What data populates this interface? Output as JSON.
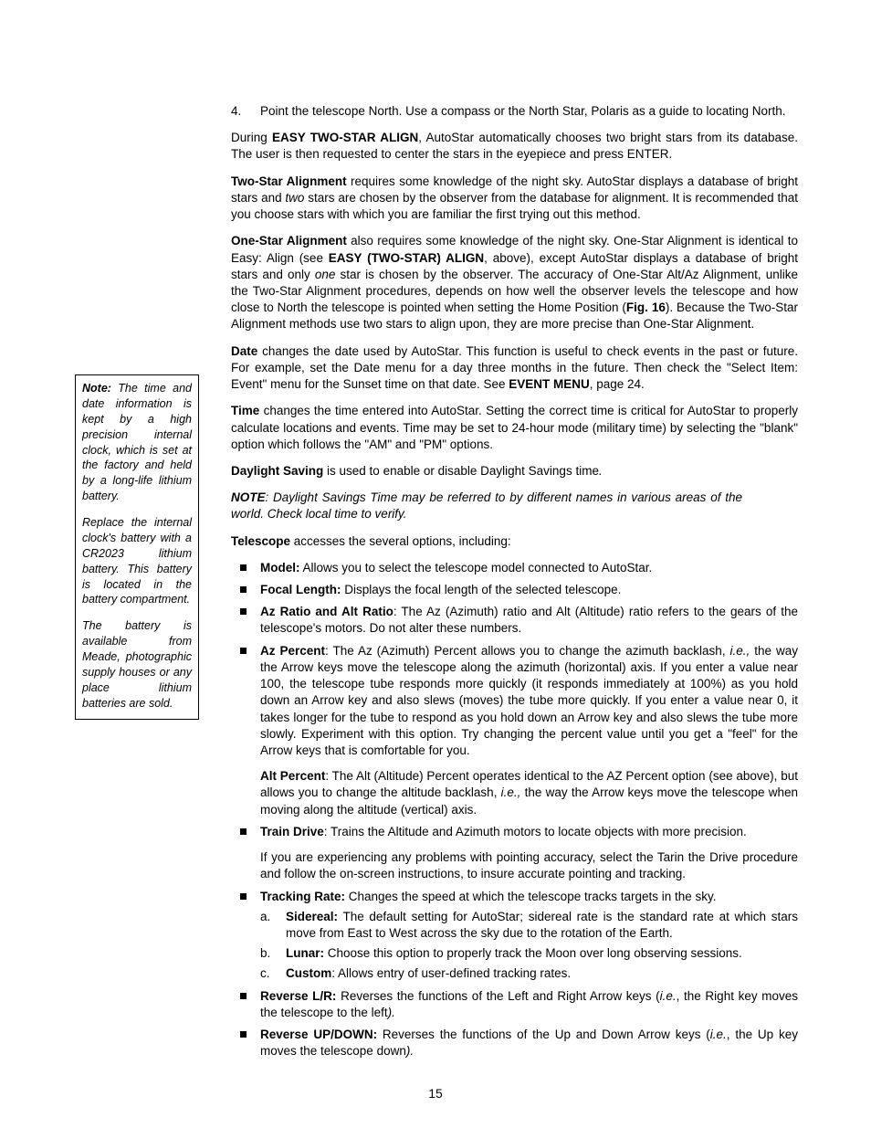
{
  "sidebar": {
    "note_label": "Note:",
    "p1_rest": " The time and date information is kept by a high precision internal clock, which is set at the factory and held by a long-life lithium battery.",
    "p2": "Replace the internal clock's battery with a CR2023 lithium battery. This battery is located in the battery compartment.",
    "p3": "The battery is available from Meade, photographic supply houses or any place lithium batteries are sold."
  },
  "main": {
    "step4_num": "4.",
    "step4": "Point the telescope North. Use a compass or the North Star, Polaris as a guide to locating North.",
    "during_pre": "During ",
    "during_b": "EASY TWO-STAR ALIGN",
    "during_post": ", AutoStar automatically chooses two bright stars from its database. The user is then requested to center the stars in the eyepiece and press ENTER.",
    "twostar_b": "Two-Star Alignment",
    "twostar_rest1": " requires some knowledge of the night sky.  AutoStar displays a database of bright stars and ",
    "twostar_two": "two",
    "twostar_rest2": " stars are chosen by the observer from the database for alignment. It is recommended that you choose stars with which you are familiar the first trying out this method.",
    "onestar_b": "One-Star Alignment",
    "onestar_rest1": " also requires some knowledge of the night sky. One-Star Alignment is identical to Easy: Align (see ",
    "onestar_easy": "EASY (TWO-STAR) ALIGN",
    "onestar_rest2": ", above), except AutoStar displays a database of bright stars and only ",
    "onestar_one": "one",
    "onestar_rest3": " star is chosen by the observer. The accuracy of One-Star Alt/Az Alignment, unlike the Two-Star Alignment procedures, depends on how well the observer levels the telescope and how close to North the telescope is pointed when setting the Home Position (",
    "onestar_fig": "Fig. 16",
    "onestar_rest4": "). Because the Two-Star Alignment methods use two stars to align upon, they are more precise than One-Star Alignment.",
    "date_b": "Date",
    "date_rest1": " changes the date used by AutoStar. This function is useful to check events in the past or future. For example, set the Date menu for a day three months in the future. Then check the \"Select Item: Event\" menu for the Sunset time on that date. See ",
    "date_event": "EVENT MENU",
    "date_rest2": ", page 24.",
    "time_b": "Time",
    "time_rest": " changes the time entered into AutoStar. Setting the correct time is critical for AutoStar to properly calculate locations and events. Time may be set to 24-hour mode (military time) by selecting the \"blank\" option which follows the \"AM\" and \"PM\" options.",
    "daylight_b": "Daylight Saving",
    "daylight_rest": " is used to enable or disable Daylight Savings time",
    "daylight_period": ".",
    "note_label": "NOTE",
    "note_rest": ": Daylight Savings Time may be referred to by different names in various areas of the world. Check local time to verify.",
    "telescope_b": "Telescope",
    "telescope_rest": " accesses the several options, including:",
    "li_model_b": "Model:",
    "li_model_rest": " Allows you to select the telescope model connected to AutoStar.",
    "li_focal_b": "Focal Length:",
    "li_focal_rest": " Displays the focal length of the selected telescope.",
    "li_azratio_b": "Az Ratio and Alt Ratio",
    "li_azratio_rest": ": The Az (Azimuth) ratio and Alt (Altitude) ratio refers to the gears of the telescope's motors. Do not alter these numbers.",
    "li_azpct_b": "Az Percent",
    "li_azpct_rest1": ": The Az (Azimuth) Percent allows you to change the azimuth backlash, ",
    "li_azpct_ie": "i.e.,",
    "li_azpct_rest2": " the way the Arrow keys move the telescope along the azimuth (horizontal) axis. If you enter a value near 100, the telescope tube responds more quickly (it responds immediately at 100%) as you hold down an Arrow key and also slews (moves) the tube more quickly. If you enter a value near 0, it takes longer for the tube to respond as you hold down an Arrow key and also slews the tube more slowly. Experiment with this option. Try changing the percent value until you get a \"feel\" for the Arrow keys that is comfortable for you.",
    "li_altpct_b": "Alt Percent",
    "li_altpct_rest1": ": The Alt (Altitude) Percent operates identical to the AZ Percent option (see above), but allows you to change the altitude backlash, ",
    "li_altpct_ie": "i.e.,",
    "li_altpct_rest2": " the way the Arrow keys move the telescope when moving along the altitude (vertical) axis.",
    "li_train_b": "Train Drive",
    "li_train_rest": ": Trains the Altitude and Azimuth motors to locate objects with more precision.",
    "li_train_p2": "If you are experiencing any problems with pointing accuracy, select the Tarin the Drive procedure and follow the on-screen instructions, to insure accurate pointing and tracking.",
    "li_track_b": "Tracking Rate:",
    "li_track_rest": " Changes the speed at which the telescope tracks targets in the sky.",
    "sub_a_lbl": "a.",
    "sub_a_b": "Sidereal:",
    "sub_a_rest": " The default setting for AutoStar; sidereal rate is the standard rate at which stars move from East to West across the sky due to the rotation of the Earth.",
    "sub_b_lbl": "b.",
    "sub_b_b": "Lunar:",
    "sub_b_rest": " Choose this option to properly track the Moon over long observing sessions.",
    "sub_c_lbl": "c.",
    "sub_c_b": "Custom",
    "sub_c_rest": ": Allows entry of user-defined tracking rates.",
    "li_revlr_b": "Reverse L/R:",
    "li_revlr_rest1": " Reverses the functions of the Left and Right Arrow keys (",
    "li_revlr_ie": "i.e.",
    "li_revlr_rest2": ", the Right key moves the telescope to the left",
    "li_revlr_close": ").",
    "li_revud_b": "Reverse UP/DOWN:",
    "li_revud_rest1": " Reverses the functions of the Up and Down Arrow keys (",
    "li_revud_ie": "i.e.",
    "li_revud_rest2": ", the Up key moves the telescope down",
    "li_revud_close": ")."
  },
  "pagenum": "15"
}
